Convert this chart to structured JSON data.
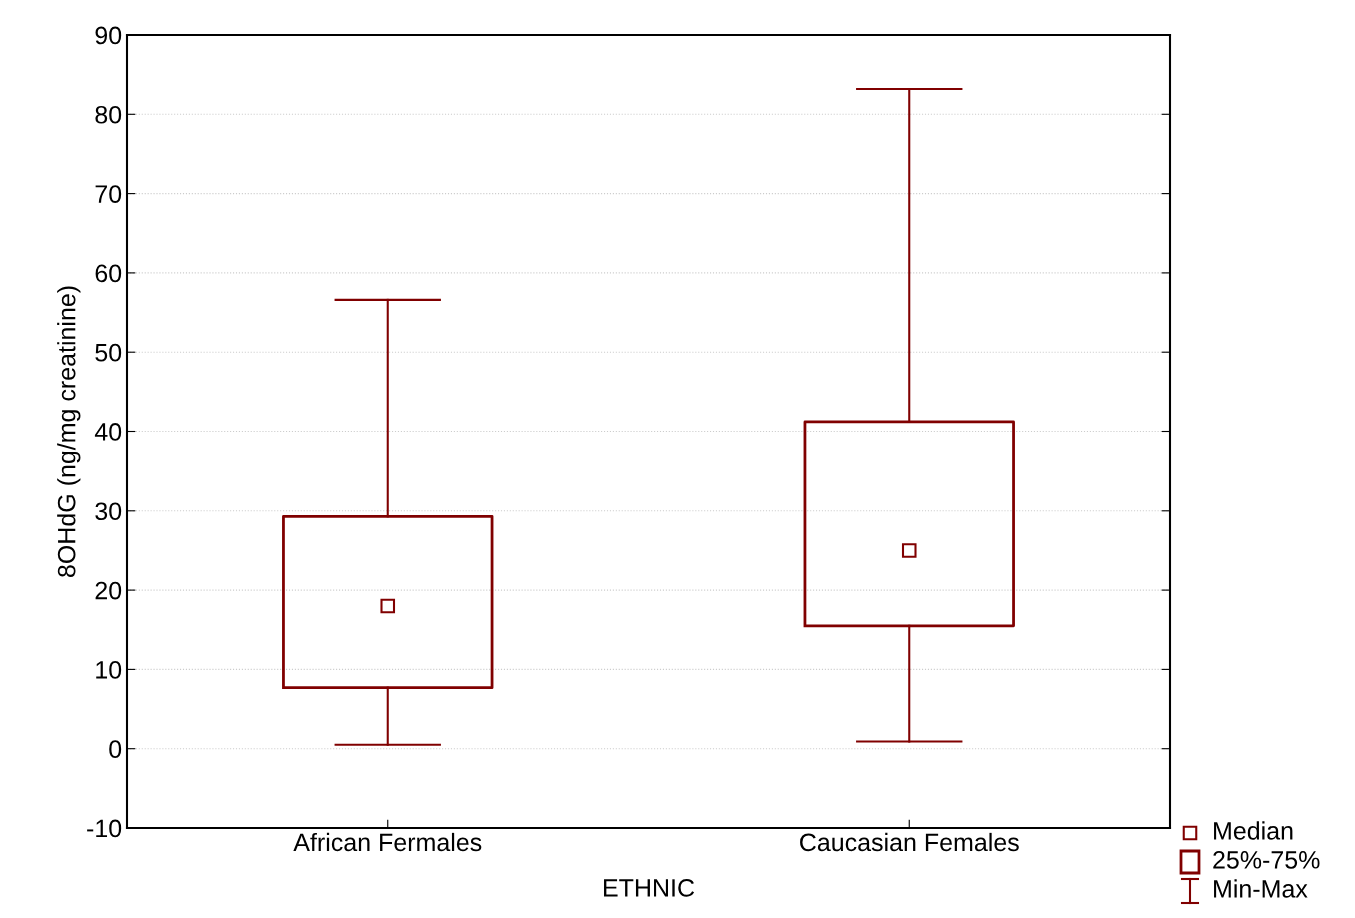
{
  "chart_data": {
    "type": "box",
    "xlabel": "ETHNIC",
    "ylabel": "8OHdG (ng/mg creatinine)",
    "categories": [
      "African Fermales",
      "Caucasian Females"
    ],
    "series": [
      {
        "color": "#800000",
        "boxes": [
          {
            "low": 0.5,
            "q1": 7.7,
            "median": 18.0,
            "q3": 29.3,
            "high": 56.6
          },
          {
            "low": 0.9,
            "q1": 15.5,
            "median": 25.0,
            "q3": 41.2,
            "high": 83.2
          }
        ]
      }
    ],
    "ylim": [
      -10,
      90
    ],
    "yticks": [
      -10,
      0,
      10,
      20,
      30,
      40,
      50,
      60,
      70,
      80,
      90
    ],
    "grid": "y",
    "marker": "square",
    "annotations": [
      "Median",
      "25%-75%",
      "Min-Max"
    ]
  }
}
